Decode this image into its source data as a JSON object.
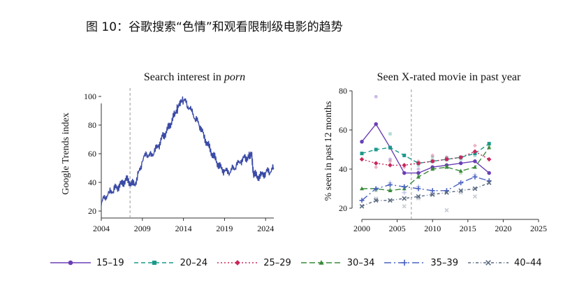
{
  "figure": {
    "title": "图 10：谷歌搜索“色情”和观看限制级电影的趋势"
  },
  "chart_data": [
    {
      "type": "line",
      "title_prefix": "Search interest in ",
      "title_emph": "porn",
      "xlabel": "",
      "ylabel": "Google Trends index",
      "xlim": [
        2004,
        2025
      ],
      "ylim": [
        20,
        100
      ],
      "xticks": [
        "2004",
        "2009",
        "2014",
        "2019",
        "2024"
      ],
      "yticks": [
        "20",
        "40",
        "60",
        "80",
        "100"
      ],
      "reference_x": 2007.5,
      "color": "#3b4ba6",
      "series": [
        {
          "x": [
            2004.0,
            2004.5,
            2005.0,
            2005.5,
            2006.0,
            2006.5,
            2007.0,
            2007.5,
            2008.0,
            2008.5,
            2009.0,
            2009.5,
            2010.0,
            2010.5,
            2011.0,
            2011.5,
            2012.0,
            2012.5,
            2013.0,
            2013.3,
            2013.6,
            2014.0,
            2014.5,
            2015.0,
            2015.5,
            2016.0,
            2016.5,
            2017.0,
            2017.5,
            2018.0,
            2018.5,
            2019.0,
            2019.5,
            2020.0,
            2020.5,
            2021.0,
            2021.5,
            2022.0,
            2022.3,
            2022.5,
            2023.0,
            2023.5,
            2024.0,
            2024.5,
            2025.0
          ],
          "y": [
            26,
            30,
            33,
            35,
            37,
            39,
            42,
            40,
            38,
            45,
            55,
            60,
            58,
            62,
            66,
            72,
            76,
            82,
            88,
            92,
            96,
            98,
            94,
            90,
            84,
            80,
            72,
            66,
            60,
            55,
            50,
            48,
            47,
            49,
            52,
            55,
            57,
            58,
            60,
            46,
            44,
            45,
            47,
            48,
            50
          ]
        }
      ]
    },
    {
      "type": "line",
      "title": "Seen X-rated movie in past year",
      "xlabel": "",
      "ylabel": "% seen in past 12 months",
      "xlim": [
        2000,
        2025
      ],
      "ylim": [
        20,
        80
      ],
      "xticks": [
        "2000",
        "2005",
        "2010",
        "2015",
        "2020",
        "2025"
      ],
      "yticks": [
        "20",
        "40",
        "60",
        "80"
      ],
      "reference_x": 2007,
      "series": [
        {
          "name": "15–19",
          "color": "#6a3fb5",
          "dash": "",
          "marker": "circle",
          "x": [
            2000,
            2002,
            2004,
            2006,
            2008,
            2010,
            2012,
            2014,
            2016,
            2018
          ],
          "y": [
            54,
            63,
            51,
            38,
            38,
            41,
            42,
            43,
            44,
            38
          ],
          "scatter_x": [
            2002,
            2004,
            2006,
            2008,
            2010,
            2012,
            2014,
            2016,
            2018
          ],
          "scatter_y": [
            77,
            45,
            38,
            40,
            40,
            42,
            43,
            44,
            38
          ]
        },
        {
          "name": "20–24",
          "color": "#1a9a8a",
          "dash": "6,4",
          "marker": "square",
          "x": [
            2000,
            2002,
            2004,
            2006,
            2008,
            2010,
            2012,
            2014,
            2016,
            2018
          ],
          "y": [
            48,
            50,
            51,
            47,
            43,
            44,
            45,
            46,
            48,
            53
          ],
          "scatter_x": [
            2002,
            2004,
            2006,
            2008,
            2010,
            2012,
            2014,
            2016,
            2018
          ],
          "scatter_y": [
            50,
            58,
            47,
            42,
            46,
            46,
            45,
            47,
            53
          ]
        },
        {
          "name": "25–29",
          "color": "#c8285c",
          "dash": "2,3",
          "marker": "diamond",
          "x": [
            2000,
            2002,
            2004,
            2006,
            2008,
            2010,
            2012,
            2014,
            2016,
            2018
          ],
          "y": [
            45,
            43,
            42,
            42,
            43,
            44,
            45,
            46,
            49,
            45
          ],
          "scatter_x": [
            2002,
            2004,
            2006,
            2008,
            2010,
            2012,
            2014,
            2016,
            2018
          ],
          "scatter_y": [
            41,
            44,
            41,
            44,
            47,
            46,
            46,
            52,
            45
          ]
        },
        {
          "name": "30–34",
          "color": "#3a8a3a",
          "dash": "8,4",
          "marker": "triangle",
          "x": [
            2000,
            2002,
            2004,
            2006,
            2008,
            2010,
            2012,
            2014,
            2016,
            2018
          ],
          "y": [
            30,
            30,
            29,
            30,
            36,
            40,
            41,
            39,
            41,
            51
          ],
          "scatter_x": [
            2002,
            2004,
            2006,
            2008,
            2010,
            2012,
            2014,
            2016,
            2018
          ],
          "scatter_y": [
            29,
            30,
            31,
            37,
            40,
            42,
            38,
            41,
            52
          ]
        },
        {
          "name": "35–39",
          "color": "#4a62c0",
          "dash": "10,4,2,4",
          "marker": "plus",
          "x": [
            2000,
            2002,
            2004,
            2006,
            2008,
            2010,
            2012,
            2014,
            2016,
            2018
          ],
          "y": [
            24,
            30,
            32,
            31,
            30,
            29,
            29,
            33,
            36,
            34
          ],
          "scatter_x": [
            2002,
            2004,
            2006,
            2008,
            2010,
            2012,
            2014,
            2016,
            2018
          ],
          "scatter_y": [
            30,
            33,
            28,
            31,
            29,
            29,
            33,
            37,
            34
          ]
        },
        {
          "name": "40–44",
          "color": "#5a6a80",
          "dash": "4,3,1,3",
          "marker": "x",
          "x": [
            2000,
            2002,
            2004,
            2006,
            2008,
            2010,
            2012,
            2014,
            2016,
            2018
          ],
          "y": [
            21,
            24,
            24,
            25,
            26,
            27,
            28,
            29,
            30,
            33
          ],
          "scatter_x": [
            2002,
            2004,
            2006,
            2008,
            2010,
            2012,
            2014,
            2016,
            2018
          ],
          "scatter_y": [
            25,
            24,
            21,
            25,
            27,
            19,
            28,
            26,
            33
          ]
        }
      ]
    }
  ]
}
